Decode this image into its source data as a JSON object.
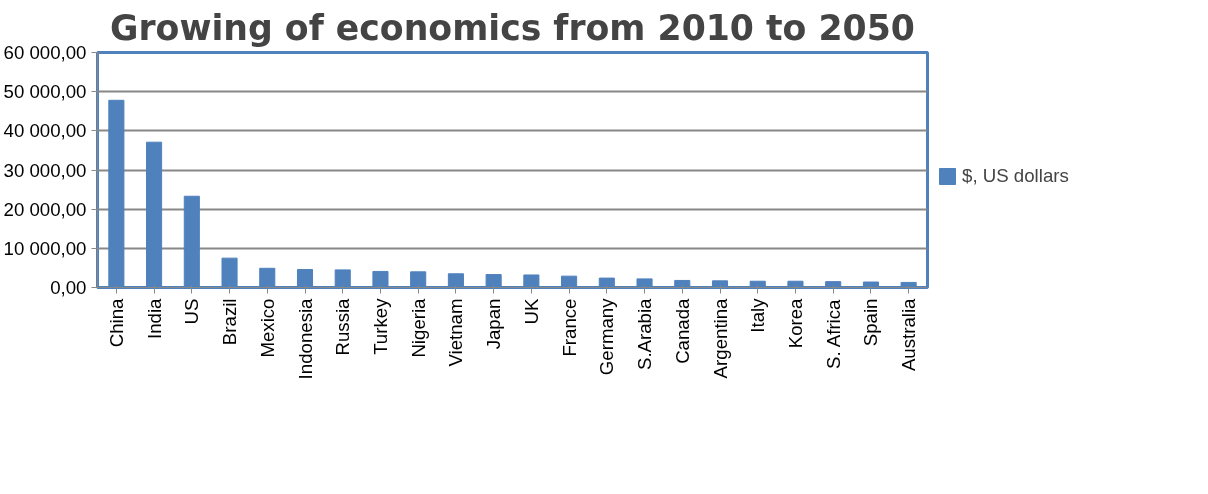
{
  "chart_data": {
    "type": "bar",
    "title": "Growing of economics from 2010 to 2050",
    "categories": [
      "China",
      "India",
      "US",
      "Brazil",
      "Mexico",
      "Indonesia",
      "Russia",
      "Turkey",
      "Nigeria",
      "Vietnam",
      "Japan",
      "UK",
      "France",
      "Germany",
      "S.Arabia",
      "Canada",
      "Argentina",
      "Italy",
      "Korea",
      "S. Africa",
      "Spain",
      "Australia"
    ],
    "series": [
      {
        "name": "$, US dollars",
        "color": "#4f81bd",
        "values": [
          47800,
          37100,
          23300,
          7500,
          4900,
          4600,
          4500,
          4100,
          4000,
          3500,
          3300,
          3200,
          2900,
          2400,
          2200,
          1800,
          1700,
          1600,
          1600,
          1500,
          1400,
          1300
        ]
      }
    ],
    "ylim": [
      0,
      60000
    ],
    "yticks": [
      {
        "value": 0,
        "label": "0,00"
      },
      {
        "value": 10000,
        "label": "10 000,00"
      },
      {
        "value": 20000,
        "label": "20 000,00"
      },
      {
        "value": 30000,
        "label": "30 000,00"
      },
      {
        "value": 40000,
        "label": "40 000,00"
      },
      {
        "value": 50000,
        "label": "50 000,00"
      },
      {
        "value": 60000,
        "label": "60 000,00"
      }
    ],
    "grid": "y",
    "legend": "right"
  }
}
